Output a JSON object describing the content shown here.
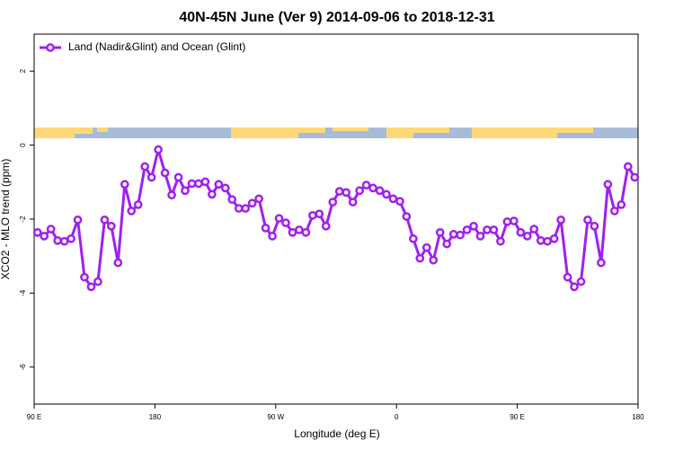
{
  "chart_data": {
    "type": "line",
    "title": "40N-45N June (Ver 9)   2014-09-06 to 2018-12-31",
    "x_label": "Longitude (deg E)",
    "y_label": "XCO2 - MLO trend (ppm)",
    "legend": "topleft",
    "grid": false,
    "xlim": [
      90,
      540
    ],
    "xticks": [
      {
        "value": 90,
        "label": "90 E"
      },
      {
        "value": 180,
        "label": "180"
      },
      {
        "value": 270,
        "label": "90 W"
      },
      {
        "value": 360,
        "label": "0"
      },
      {
        "value": 450,
        "label": "90 E"
      },
      {
        "value": 540,
        "label": "180"
      }
    ],
    "ylim": [
      -7,
      3
    ],
    "yticks": [
      -6,
      -4,
      -2,
      0,
      2
    ],
    "x": [
      92.5,
      97.5,
      102.5,
      107.5,
      112.5,
      117.5,
      122.5,
      127.5,
      132.5,
      137.5,
      142.5,
      147.5,
      152.5,
      157.5,
      162.5,
      167.5,
      172.5,
      177.5,
      182.5,
      187.5,
      192.5,
      197.5,
      202.5,
      207.5,
      212.5,
      217.5,
      222.5,
      227.5,
      232.5,
      237.5,
      242.5,
      247.5,
      252.5,
      257.5,
      262.5,
      267.5,
      272.5,
      277.5,
      282.5,
      287.5,
      292.5,
      297.5,
      302.5,
      307.5,
      312.5,
      317.5,
      322.5,
      327.5,
      332.5,
      337.5,
      342.5,
      347.5,
      352.5,
      357.5,
      362.5,
      367.5,
      372.5,
      377.5,
      382.5,
      387.5,
      392.5,
      397.5,
      402.5,
      407.5,
      412.5,
      417.5,
      422.5,
      427.5,
      432.5,
      437.5,
      442.5,
      447.5,
      452.5,
      457.5,
      462.5,
      467.5,
      472.5,
      477.5,
      482.5,
      487.5,
      492.5,
      497.5,
      502.5,
      507.5,
      512.5,
      517.5,
      522.5,
      527.5,
      532.5,
      537.5
    ],
    "series": [
      {
        "name": "Land (Nadir&Glint) and Ocean (Glint)",
        "color": "#a020f0",
        "values": [
          -2.36,
          -2.46,
          -2.27,
          -2.58,
          -2.6,
          -2.53,
          -2.02,
          -3.57,
          -3.83,
          -3.69,
          -2.02,
          -2.19,
          -3.18,
          -1.06,
          -1.78,
          -1.61,
          -0.58,
          -0.87,
          -0.12,
          -0.75,
          -1.35,
          -0.87,
          -1.23,
          -1.04,
          -1.04,
          -0.99,
          -1.33,
          -1.06,
          -1.16,
          -1.47,
          -1.71,
          -1.71,
          -1.57,
          -1.45,
          -2.24,
          -2.46,
          -1.98,
          -2.1,
          -2.36,
          -2.29,
          -2.36,
          -1.9,
          -1.86,
          -2.19,
          -1.54,
          -1.25,
          -1.28,
          -1.54,
          -1.23,
          -1.08,
          -1.16,
          -1.23,
          -1.33,
          -1.45,
          -1.52,
          -1.93,
          -2.53,
          -3.06,
          -2.77,
          -3.11,
          -2.36,
          -2.67,
          -2.41,
          -2.43,
          -2.29,
          -2.19,
          -2.46,
          -2.29,
          -2.29,
          -2.6,
          -2.07,
          -2.05,
          -2.36,
          -2.46,
          -2.27,
          -2.58,
          -2.6,
          -2.53,
          -2.02,
          -3.57,
          -3.83,
          -3.69,
          -2.02,
          -2.19,
          -3.18,
          -1.06,
          -1.78,
          -1.61,
          -0.58,
          -0.87
        ]
      }
    ]
  }
}
